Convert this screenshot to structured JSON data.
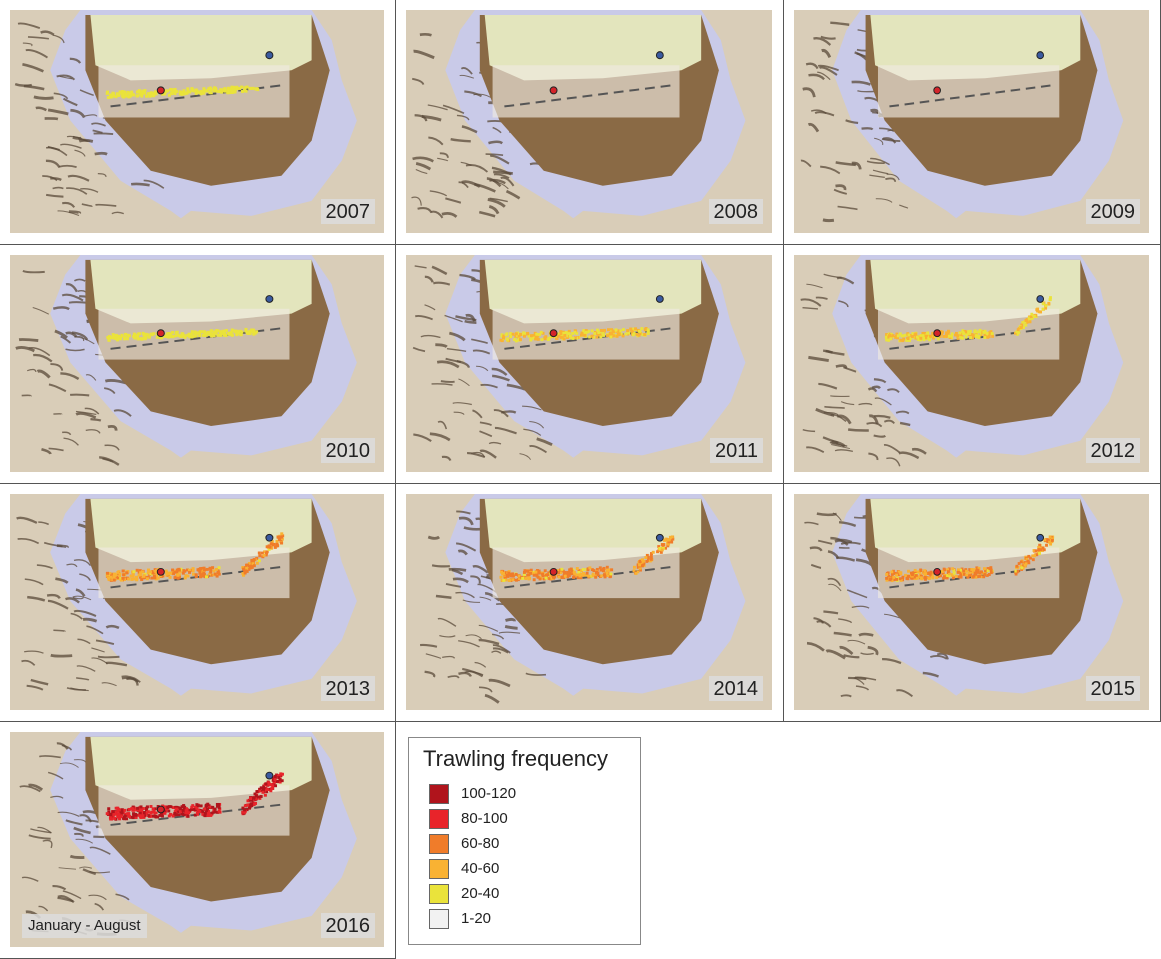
{
  "panels": [
    {
      "year": "2007",
      "intensity": 1,
      "east_extension": false
    },
    {
      "year": "2008",
      "intensity": 0,
      "east_extension": false
    },
    {
      "year": "2009",
      "intensity": 0,
      "east_extension": false
    },
    {
      "year": "2010",
      "intensity": 1,
      "east_extension": false
    },
    {
      "year": "2011",
      "intensity": 2,
      "east_extension": false
    },
    {
      "year": "2012",
      "intensity": 2,
      "east_extension": true
    },
    {
      "year": "2013",
      "intensity": 3,
      "east_extension": true
    },
    {
      "year": "2014",
      "intensity": 3,
      "east_extension": true
    },
    {
      "year": "2015",
      "intensity": 3,
      "east_extension": true
    },
    {
      "year": "2016",
      "intensity": 4,
      "east_extension": true,
      "period": "January - August"
    }
  ],
  "legend": {
    "title": "Trawling frequency",
    "items": [
      {
        "label": "100-120",
        "color": "#b0141c"
      },
      {
        "label": "80-100",
        "color": "#e8242a"
      },
      {
        "label": "60-80",
        "color": "#f07c2a"
      },
      {
        "label": "40-60",
        "color": "#f9b233"
      },
      {
        "label": "20-40",
        "color": "#eae33b"
      },
      {
        "label": "1-20",
        "color": "#f2f2f2"
      }
    ]
  },
  "colors": {
    "water": "#c9cae8",
    "shelf": "#e8ecc4",
    "canyon": "#8a6a45",
    "land": "#d9cdb8",
    "terrain_dark": "#5a4a3a",
    "red_station": "#d4242a",
    "blue_station": "#3a5aa0"
  }
}
